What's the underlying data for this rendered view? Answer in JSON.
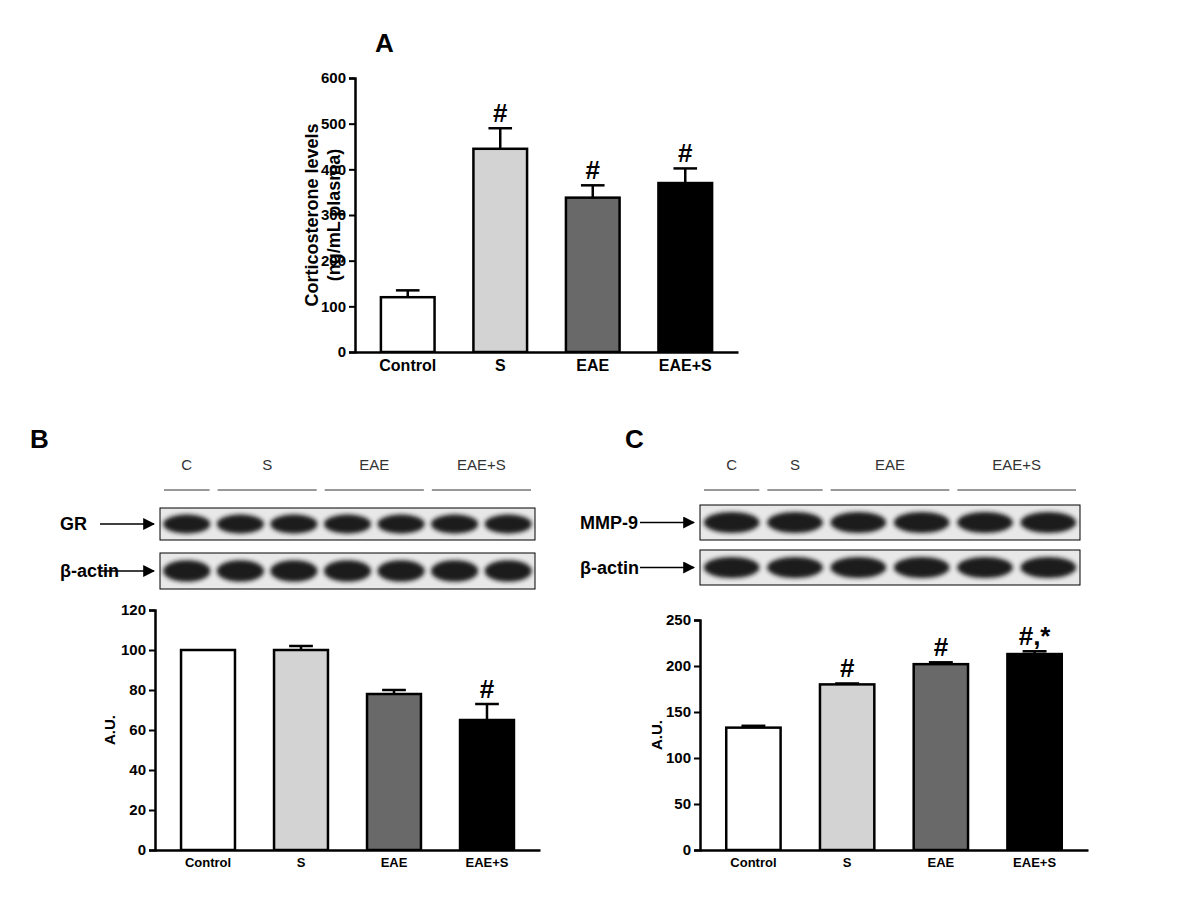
{
  "chart_data": [
    {
      "type": "bar",
      "title": "A",
      "categories": [
        "Control",
        "S",
        "EAE",
        "EAE+S"
      ],
      "values": [
        120,
        445,
        338,
        370
      ],
      "errors": [
        15,
        45,
        27,
        32
      ],
      "annotations": [
        null,
        "#",
        "#",
        "#"
      ],
      "colors": [
        "#ffffff",
        "#d3d3d3",
        "#696969",
        "#000000"
      ],
      "ylabel": [
        "Corticosterone levels",
        "(ng/mL plasma)"
      ],
      "ylim": [
        0,
        600
      ],
      "yticks": [
        0,
        100,
        200,
        300,
        400,
        500,
        600
      ]
    },
    {
      "type": "bar",
      "title": "B",
      "categories": [
        "Control",
        "S",
        "EAE",
        "EAE+S"
      ],
      "values": [
        100,
        100,
        78,
        65
      ],
      "errors": [
        0,
        2,
        2,
        8
      ],
      "annotations": [
        null,
        null,
        null,
        "#"
      ],
      "colors": [
        "#ffffff",
        "#d3d3d3",
        "#696969",
        "#000000"
      ],
      "ylabel": [
        "A.U."
      ],
      "ylim": [
        0,
        120
      ],
      "yticks": [
        0,
        20,
        40,
        60,
        80,
        100,
        120
      ]
    },
    {
      "type": "bar",
      "title": "C",
      "categories": [
        "Control",
        "S",
        "EAE",
        "EAE+S"
      ],
      "values": [
        133,
        180,
        202,
        213
      ],
      "errors": [
        2,
        1,
        2,
        3
      ],
      "annotations": [
        null,
        "#",
        "#",
        "#,*"
      ],
      "colors": [
        "#ffffff",
        "#d3d3d3",
        "#696969",
        "#000000"
      ],
      "ylabel": [
        "A.U."
      ],
      "ylim": [
        0,
        250
      ],
      "yticks": [
        0,
        50,
        100,
        150,
        200,
        250
      ]
    }
  ],
  "blots": [
    {
      "rows": [
        "GR",
        "β-actin"
      ],
      "groups": [
        {
          "label": "C",
          "lanes": 1
        },
        {
          "label": "S",
          "lanes": 2
        },
        {
          "label": "EAE",
          "lanes": 2
        },
        {
          "label": "EAE+S",
          "lanes": 2
        }
      ]
    },
    {
      "rows": [
        "MMP-9",
        "β-actin"
      ],
      "groups": [
        {
          "label": "C",
          "lanes": 1
        },
        {
          "label": "S",
          "lanes": 1
        },
        {
          "label": "EAE",
          "lanes": 2
        },
        {
          "label": "EAE+S",
          "lanes": 2
        }
      ]
    }
  ]
}
